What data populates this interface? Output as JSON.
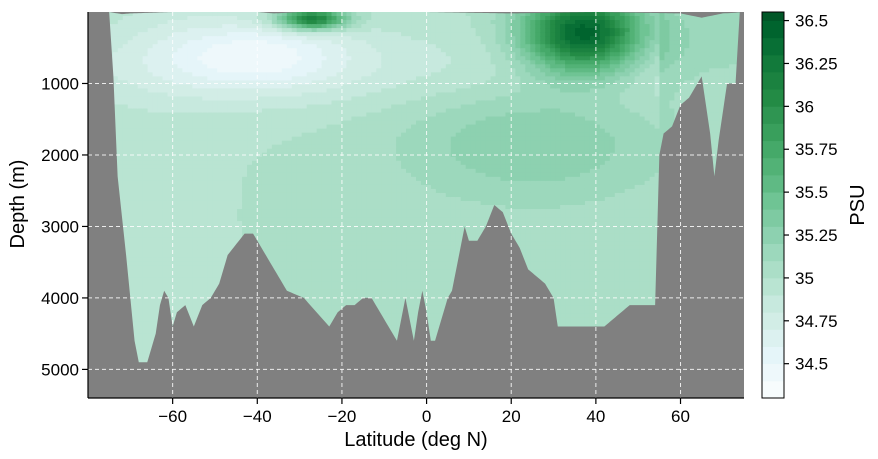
{
  "chart_data": {
    "type": "heatmap",
    "title": "",
    "xlabel": "Latitude (deg N)",
    "ylabel": "Depth (m)",
    "xlim": [
      -80,
      75
    ],
    "ylim": [
      5400,
      0
    ],
    "y_inverted": true,
    "x_ticks": [
      "−60",
      "−40",
      "−20",
      "0",
      "20",
      "40",
      "60"
    ],
    "x_tick_values": [
      -60,
      -40,
      -20,
      0,
      20,
      40,
      60
    ],
    "y_ticks": [
      "1000",
      "2000",
      "3000",
      "4000",
      "5000"
    ],
    "y_tick_values": [
      1000,
      2000,
      3000,
      4000,
      5000
    ],
    "grid": true,
    "grid_style": "dashed white",
    "background_color": "#808080",
    "colorbar": {
      "label": "PSU",
      "range": [
        34.3,
        36.55
      ],
      "tick_labels": [
        "34.5",
        "34.75",
        "35",
        "35.25",
        "35.5",
        "35.75",
        "36",
        "36.25",
        "36.5"
      ],
      "tick_values": [
        34.5,
        34.75,
        35,
        35.25,
        35.5,
        35.75,
        36,
        36.25,
        36.5
      ],
      "levels": [
        34.3,
        34.4,
        34.5,
        34.6,
        34.7,
        34.8,
        34.9,
        35.0,
        35.1,
        35.2,
        35.3,
        35.4,
        35.5,
        35.6,
        35.7,
        35.8,
        35.9,
        36.0,
        36.1,
        36.2,
        36.3,
        36.4,
        36.5,
        36.55
      ],
      "colors": [
        "#f7fcfd",
        "#eef8fb",
        "#e5f5f9",
        "#dcf1f0",
        "#d2ede6",
        "#c7e9de",
        "#b9e4d2",
        "#abdec7",
        "#9cd8bc",
        "#8dd1b0",
        "#7ecaa2",
        "#6fc494",
        "#5fba84",
        "#52b276",
        "#45a969",
        "#399f5c",
        "#2f9552",
        "#238b45",
        "#1b8240",
        "#127a3b",
        "#086f35",
        "#00642e",
        "#005727",
        "#00441b"
      ]
    },
    "bottom_profile": {
      "lat": [
        -80,
        -75,
        -74,
        -73,
        -71,
        -70,
        -69,
        -68,
        -67,
        -66,
        -64,
        -63,
        -62,
        -61,
        -60,
        -59,
        -57,
        -55,
        -53,
        -51,
        -49,
        -47,
        -43,
        -41,
        -39,
        -37,
        -33,
        -29,
        -26,
        -23,
        -21,
        -19,
        -17,
        -15,
        -13,
        -11,
        -9,
        -7,
        -5,
        -3,
        -2,
        -1,
        0,
        1,
        2,
        3,
        4,
        5,
        6,
        7,
        8,
        9,
        10,
        11,
        12,
        14,
        16,
        18,
        20,
        22,
        24,
        26,
        28,
        30,
        31,
        32,
        34,
        36,
        38,
        40,
        42,
        44,
        46,
        48,
        50,
        52,
        54,
        55,
        56,
        58,
        60,
        62,
        64,
        65,
        66,
        67,
        68,
        69,
        70,
        71,
        72,
        73,
        74,
        75
      ],
      "depth": [
        0,
        0,
        900,
        2300,
        3400,
        4000,
        4600,
        4900,
        4900,
        4900,
        4500,
        4100,
        3900,
        4000,
        4400,
        4200,
        4100,
        4400,
        4100,
        4000,
        3800,
        3400,
        3100,
        3100,
        3300,
        3500,
        3900,
        4000,
        4200,
        4400,
        4200,
        4100,
        4100,
        4000,
        4000,
        4200,
        4400,
        4600,
        4000,
        4600,
        4200,
        3900,
        4200,
        4600,
        4600,
        4400,
        4200,
        4000,
        3900,
        3600,
        3300,
        3000,
        3200,
        3200,
        3200,
        3000,
        2700,
        2800,
        3100,
        3300,
        3600,
        3700,
        3800,
        4000,
        4400,
        4400,
        4400,
        4400,
        4400,
        4400,
        4400,
        4300,
        4200,
        4100,
        4100,
        4100,
        4100,
        2000,
        1700,
        1600,
        1300,
        1200,
        1000,
        900,
        1300,
        1700,
        2300,
        1800,
        1400,
        1000,
        1000,
        1000,
        0,
        0
      ]
    },
    "surface_profile": {
      "lat": [
        -80,
        -75,
        -72,
        -70,
        -60,
        -50,
        -40,
        -36,
        -30,
        -20,
        -10,
        0,
        10,
        20,
        30,
        40,
        50,
        60,
        65,
        70,
        73,
        75
      ],
      "depth": [
        0,
        0,
        30,
        20,
        0,
        0,
        0,
        20,
        0,
        0,
        0,
        0,
        10,
        20,
        10,
        0,
        10,
        20,
        80,
        20,
        10,
        0
      ]
    },
    "field_features": [
      {
        "name": "subtropical-max-north",
        "lat": 37,
        "depth": 300,
        "value": 36.5,
        "sigma_lat": 14,
        "sigma_depth": 550
      },
      {
        "name": "subtropical-max-south",
        "lat": -27,
        "depth": 100,
        "value": 36.3,
        "sigma_lat": 8,
        "sigma_depth": 150
      },
      {
        "name": "nadw-tongue",
        "lat": 25,
        "depth": 1800,
        "value": 35.3,
        "sigma_lat": 32,
        "sigma_depth": 900
      },
      {
        "name": "aaiw-minimum",
        "lat": -40,
        "depth": 600,
        "value": 34.55,
        "sigma_lat": 22,
        "sigma_depth": 500
      }
    ]
  }
}
